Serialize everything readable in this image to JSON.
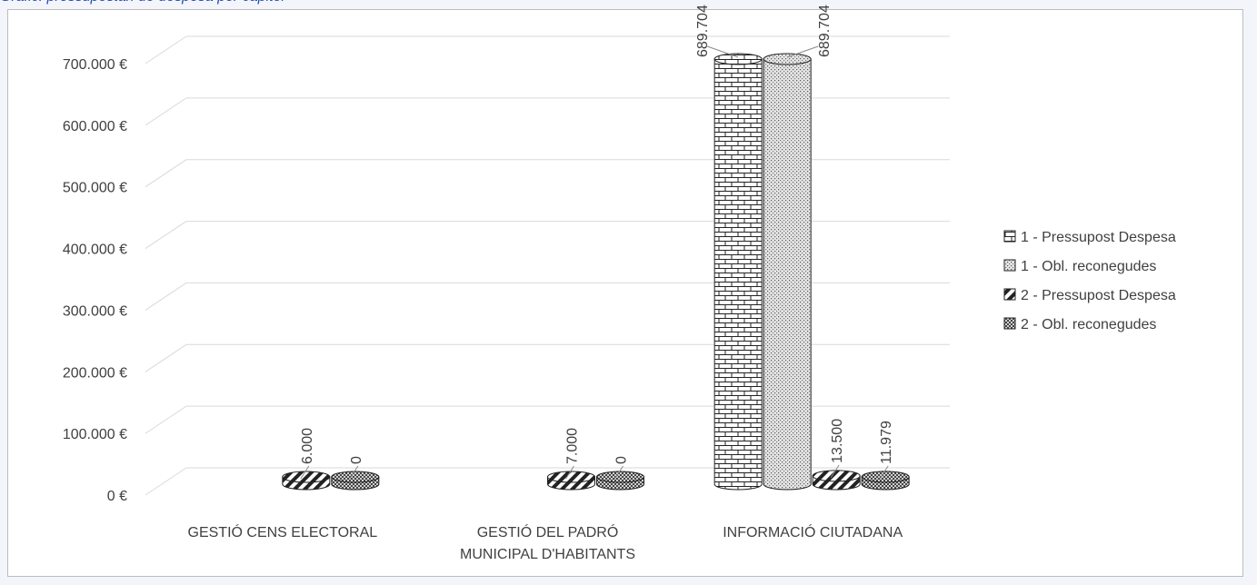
{
  "caption": "Grafic: pressupostari de despesa per capitol",
  "chart_data": {
    "type": "bar",
    "categories": [
      [
        "GESTIÓ CENS ELECTORAL"
      ],
      [
        "GESTIÓ DEL PADRÓ",
        "MUNICIPAL D'HABITANTS"
      ],
      [
        "INFORMACIÓ CIUTADANA"
      ]
    ],
    "series": [
      {
        "name": "1 - Pressupost Despesa",
        "values": [
          null,
          null,
          689704
        ],
        "labels": [
          "",
          "",
          "689.704"
        ],
        "pattern": "brick"
      },
      {
        "name": "1 - Obl. reconegudes",
        "values": [
          null,
          null,
          689704
        ],
        "labels": [
          "",
          "",
          "689.704"
        ],
        "pattern": "dots"
      },
      {
        "name": "2 - Pressupost Despesa",
        "values": [
          6000,
          7000,
          13500
        ],
        "labels": [
          "6.000",
          "7.000",
          "13.500"
        ],
        "pattern": "stripes"
      },
      {
        "name": "2 - Obl. reconegudes",
        "values": [
          0,
          0,
          11979
        ],
        "labels": [
          "0",
          "0",
          "11.979"
        ],
        "pattern": "checks"
      }
    ],
    "yticks": [
      "0 €",
      "100.000 €",
      "200.000 €",
      "300.000 €",
      "400.000 €",
      "500.000 €",
      "600.000 €",
      "700.000 €"
    ],
    "ylim": [
      0,
      700000
    ],
    "grid": true,
    "legend_position": "right"
  }
}
